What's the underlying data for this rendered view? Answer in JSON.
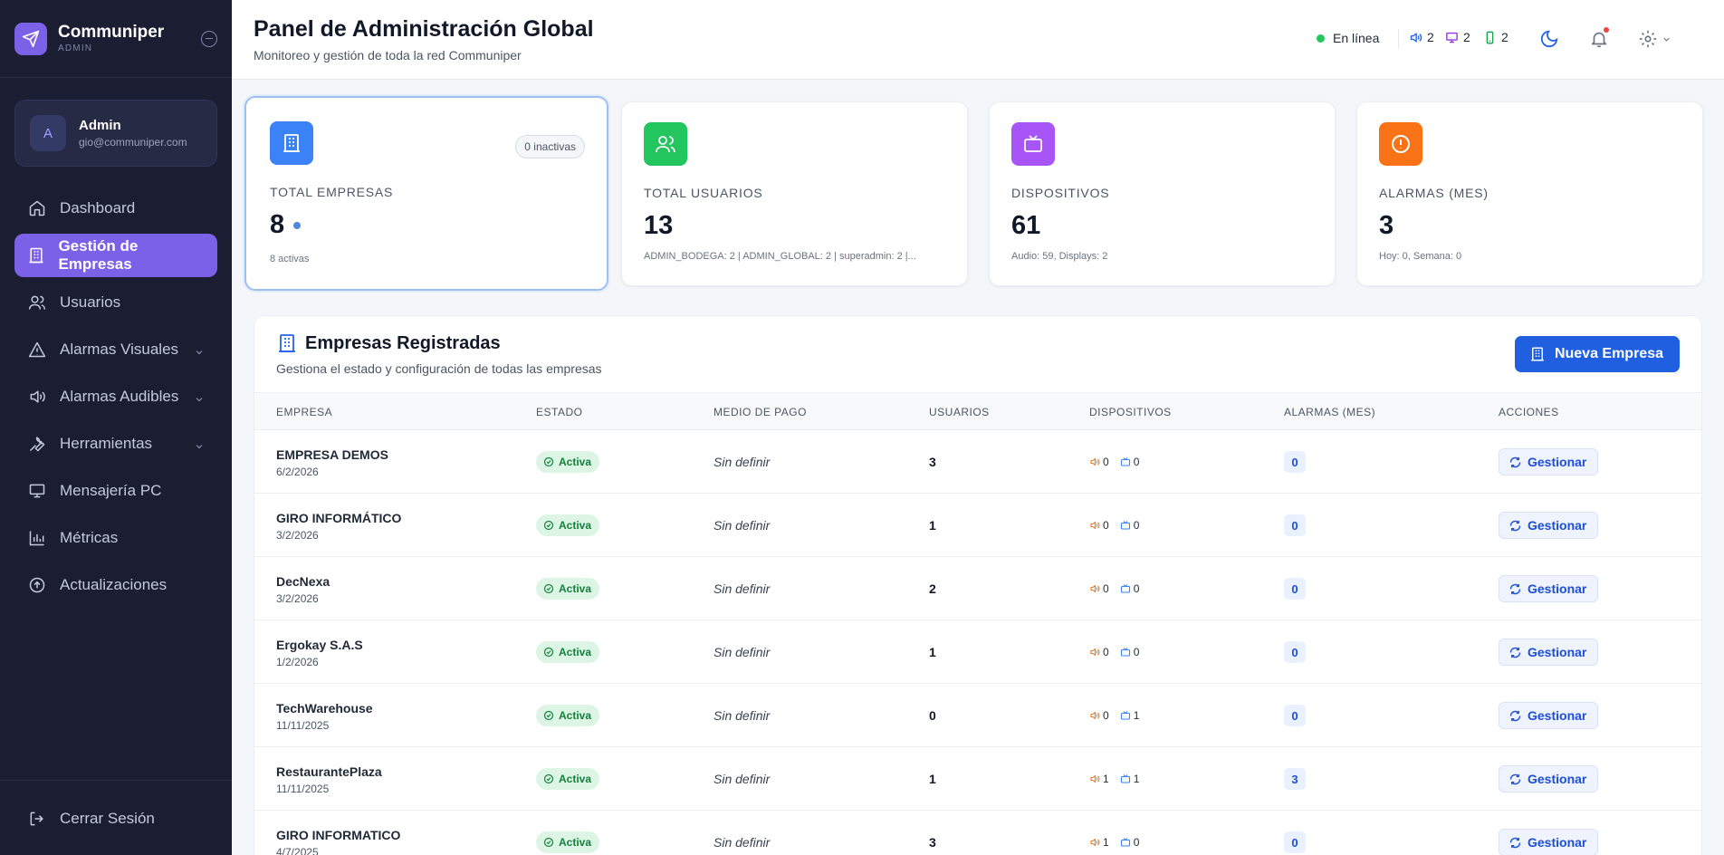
{
  "brand": {
    "name": "Communiper",
    "sub": "ADMIN"
  },
  "user": {
    "initial": "A",
    "name": "Admin",
    "email": "gio@communiper.com"
  },
  "nav": [
    {
      "label": "Dashboard",
      "icon": "home-icon"
    },
    {
      "label": "Gestión de Empresas",
      "icon": "building-icon",
      "active": true
    },
    {
      "label": "Usuarios",
      "icon": "users-icon"
    },
    {
      "label": "Alarmas Visuales",
      "icon": "alert-triangle-icon",
      "expandable": true
    },
    {
      "label": "Alarmas Audibles",
      "icon": "speaker-icon",
      "expandable": true
    },
    {
      "label": "Herramientas",
      "icon": "wrench-icon",
      "expandable": true
    },
    {
      "label": "Mensajería PC",
      "icon": "monitor-icon"
    },
    {
      "label": "Métricas",
      "icon": "bar-chart-icon"
    },
    {
      "label": "Actualizaciones",
      "icon": "upload-circle-icon"
    }
  ],
  "logout_label": "Cerrar Sesión",
  "header": {
    "title": "Panel de Administración Global",
    "subtitle": "Monitoreo y gestión de toda la red Communiper",
    "status": "En línea",
    "counters": {
      "audio": "2",
      "display": "2",
      "mobile": "2"
    }
  },
  "stats": {
    "empresas": {
      "label": "TOTAL EMPRESAS",
      "value": "8",
      "detail": "8 activas",
      "badge": "0 inactivas"
    },
    "usuarios": {
      "label": "TOTAL USUARIOS",
      "value": "13",
      "detail": "ADMIN_BODEGA: 2 | ADMIN_GLOBAL: 2 | superadmin: 2 |..."
    },
    "dispositivos": {
      "label": "DISPOSITIVOS",
      "value": "61",
      "detail": "Audio: 59, Displays: 2"
    },
    "alarmas": {
      "label": "ALARMAS (MES)",
      "value": "3",
      "detail": "Hoy: 0, Semana: 0"
    }
  },
  "panel": {
    "title": "Empresas Registradas",
    "subtitle": "Gestiona el estado y configuración de todas las empresas",
    "new_button": "Nueva Empresa",
    "columns": [
      "EMPRESA",
      "ESTADO",
      "MEDIO DE PAGO",
      "USUARIOS",
      "DISPOSITIVOS",
      "ALARMAS (MES)",
      "ACCIONES"
    ],
    "rows": [
      {
        "name": "EMPRESA DEMOS",
        "date": "6/2/2026",
        "status": "Activa",
        "payment": "Sin definir",
        "users": "3",
        "audio": "0",
        "display": "0",
        "alarms": "0",
        "action": "Gestionar"
      },
      {
        "name": "GIRO INFORMÁTICO",
        "date": "3/2/2026",
        "status": "Activa",
        "payment": "Sin definir",
        "users": "1",
        "audio": "0",
        "display": "0",
        "alarms": "0",
        "action": "Gestionar"
      },
      {
        "name": "DecNexa",
        "date": "3/2/2026",
        "status": "Activa",
        "payment": "Sin definir",
        "users": "2",
        "audio": "0",
        "display": "0",
        "alarms": "0",
        "action": "Gestionar"
      },
      {
        "name": "Ergokay S.A.S",
        "date": "1/2/2026",
        "status": "Activa",
        "payment": "Sin definir",
        "users": "1",
        "audio": "0",
        "display": "0",
        "alarms": "0",
        "action": "Gestionar"
      },
      {
        "name": "TechWarehouse",
        "date": "11/11/2025",
        "status": "Activa",
        "payment": "Sin definir",
        "users": "0",
        "audio": "0",
        "display": "1",
        "alarms": "0",
        "action": "Gestionar"
      },
      {
        "name": "RestaurantePlaza",
        "date": "11/11/2025",
        "status": "Activa",
        "payment": "Sin definir",
        "users": "1",
        "audio": "1",
        "display": "1",
        "alarms": "3",
        "action": "Gestionar"
      },
      {
        "name": "GIRO INFORMATICO",
        "date": "4/7/2025",
        "status": "Activa",
        "payment": "Sin definir",
        "users": "3",
        "audio": "1",
        "display": "0",
        "alarms": "0",
        "action": "Gestionar"
      }
    ]
  },
  "colors": {
    "accent": "#7b61e8",
    "primary": "#1f5fe0",
    "sidebar": "#1b1e33",
    "success": "#22c55e"
  }
}
